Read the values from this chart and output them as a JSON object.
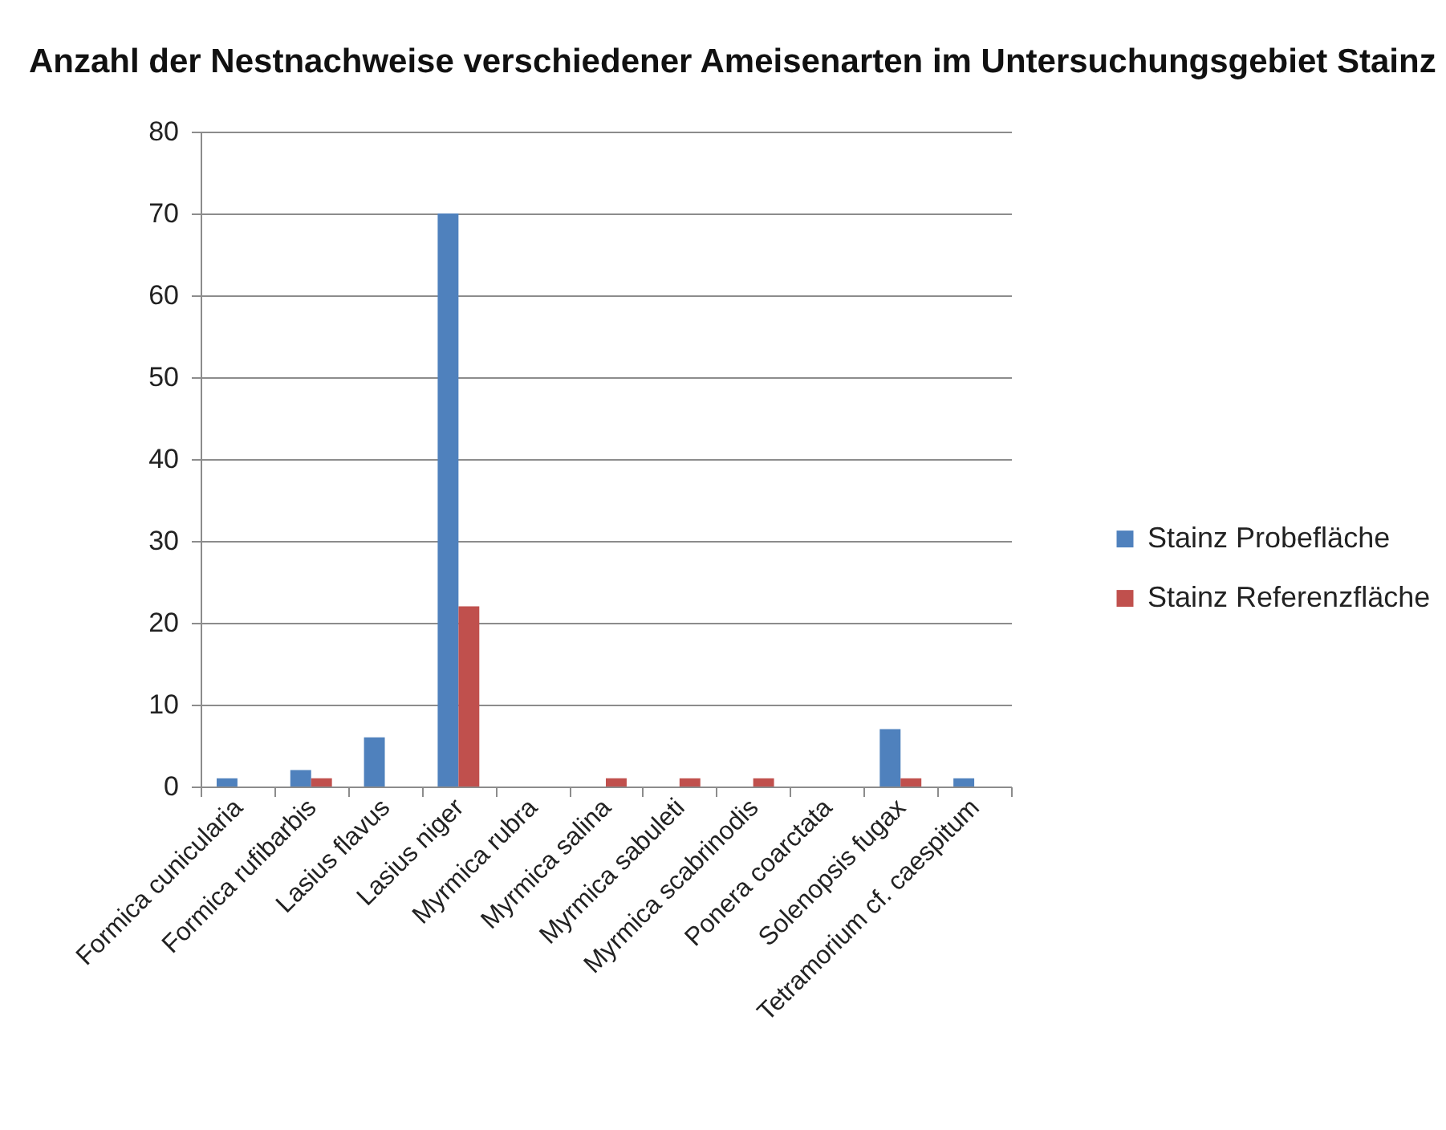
{
  "chart_data": {
    "type": "bar",
    "title": "Anzahl der Nestnachweise verschiedener Ameisenarten im Untersuchungsgebiet Stainz",
    "categories": [
      "Formica cunicularia",
      "Formica rufibarbis",
      "Lasius flavus",
      "Lasius niger",
      "Myrmica rubra",
      "Myrmica salina",
      "Myrmica sabuleti",
      "Myrmica scabrinodis",
      "Ponera coarctata",
      "Solenopsis fugax",
      "Tetramorium cf. caespitum"
    ],
    "series": [
      {
        "name": "Stainz Probefläche",
        "color": "#4f81bd",
        "values": [
          1,
          2,
          6,
          70,
          0,
          0,
          0,
          0,
          0,
          7,
          1
        ]
      },
      {
        "name": "Stainz Referenzfläche",
        "color": "#c0504d",
        "values": [
          0,
          1,
          0,
          22,
          0,
          1,
          1,
          1,
          0,
          1,
          0
        ]
      }
    ],
    "ylim": [
      0,
      80
    ],
    "yticks": [
      0,
      10,
      20,
      30,
      40,
      50,
      60,
      70,
      80
    ],
    "grid": "y",
    "legend": "right"
  }
}
